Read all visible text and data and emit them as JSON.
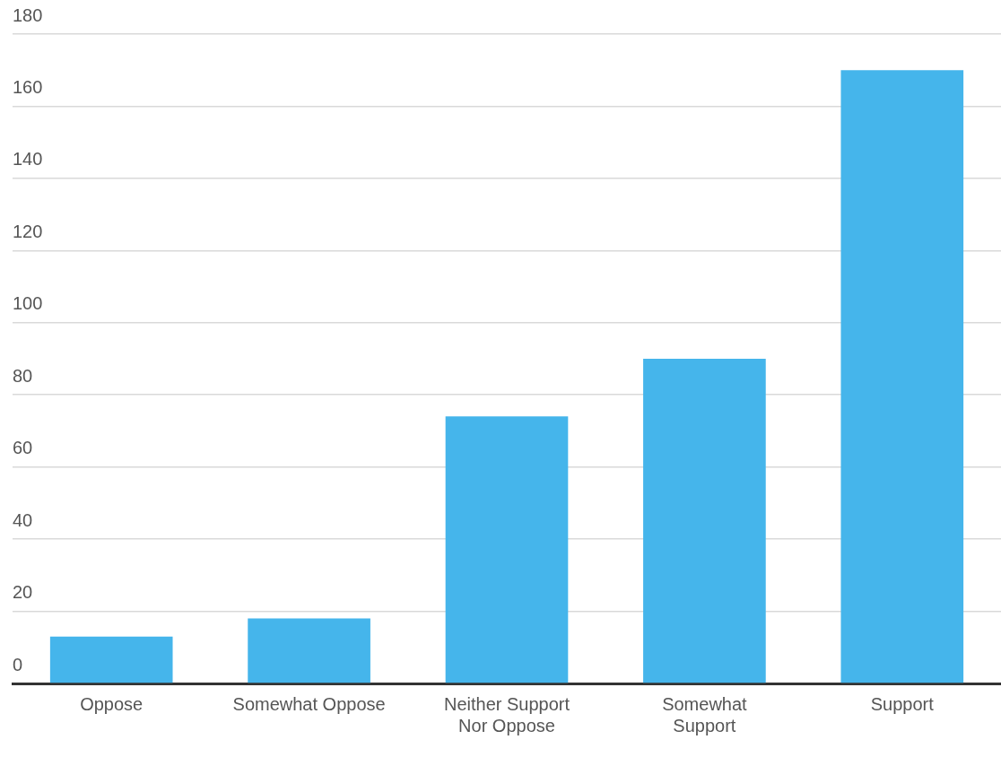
{
  "chart_data": {
    "type": "bar",
    "categories": [
      "Oppose",
      "Somewhat Oppose",
      "Neither Support Nor Oppose",
      "Somewhat Support",
      "Support"
    ],
    "values": [
      13,
      18,
      74,
      90,
      170
    ],
    "color": "#45b5eb",
    "ylim": [
      0,
      180
    ],
    "yticks": [
      0,
      20,
      40,
      60,
      80,
      100,
      120,
      140,
      160,
      180
    ],
    "grid": "y",
    "legend": false
  }
}
